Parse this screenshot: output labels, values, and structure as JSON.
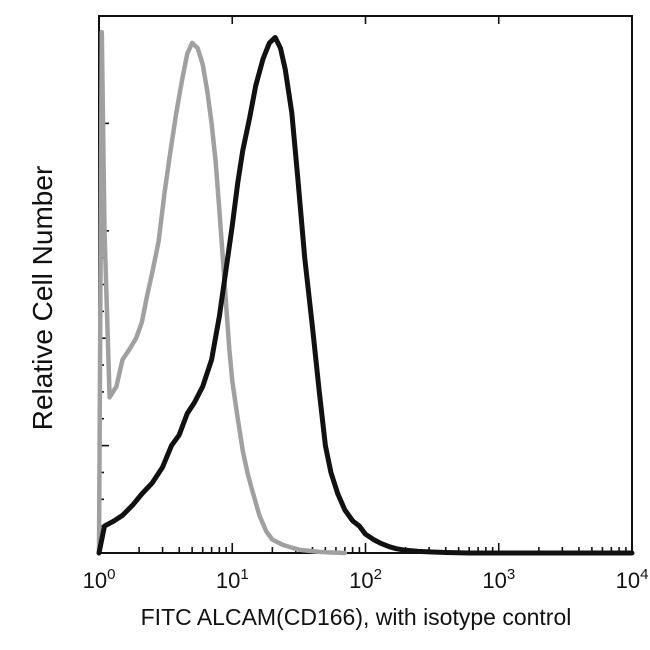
{
  "chart_data": {
    "type": "line",
    "title": "",
    "xlabel": "FITC ALCAM(CD166), with isotype control",
    "ylabel": "Relative Cell Number",
    "x_scale": "log",
    "xlim": [
      1,
      10000
    ],
    "ylim": [
      0,
      100
    ],
    "x_ticks": [
      {
        "base": "10",
        "exp": "0",
        "value": 1
      },
      {
        "base": "10",
        "exp": "1",
        "value": 10
      },
      {
        "base": "10",
        "exp": "2",
        "value": 100
      },
      {
        "base": "10",
        "exp": "3",
        "value": 1000
      },
      {
        "base": "10",
        "exp": "4",
        "value": 10000
      }
    ],
    "grid": false,
    "legend": "none",
    "series": [
      {
        "color": "#a0a0a0",
        "x": [
          1.0,
          1.05,
          1.1,
          1.2,
          1.35,
          1.5,
          1.7,
          1.9,
          2.1,
          2.3,
          2.5,
          2.8,
          3.1,
          3.4,
          3.8,
          4.2,
          4.6,
          5.0,
          5.5,
          6.0,
          6.5,
          7.0,
          7.5,
          8.0,
          8.5,
          9.0,
          9.5,
          10,
          11,
          12,
          13,
          14,
          16,
          18,
          20,
          24,
          28,
          32,
          38,
          45,
          55,
          70
        ],
        "y": [
          0,
          97,
          60,
          29,
          31,
          36,
          38,
          40,
          43,
          48,
          52,
          58,
          67,
          74,
          82,
          88,
          93,
          95,
          94,
          91,
          86,
          80,
          73,
          64,
          55,
          46,
          38,
          32,
          25,
          19,
          15,
          12,
          7,
          4,
          2.5,
          1.5,
          1,
          0.6,
          0.4,
          0.2,
          0.1,
          0
        ]
      },
      {
        "color": "#111111",
        "x": [
          1.0,
          1.1,
          1.3,
          1.5,
          1.8,
          2.1,
          2.5,
          3.0,
          3.5,
          4.0,
          4.6,
          5.2,
          6.0,
          7.0,
          8.0,
          9.0,
          10,
          11,
          12,
          13.5,
          15,
          17,
          19,
          21,
          23,
          25,
          28,
          31,
          35,
          40,
          45,
          50,
          55,
          62,
          70,
          80,
          90,
          100,
          115,
          130,
          150,
          170,
          200,
          250,
          300,
          400,
          600,
          1000,
          2000,
          5000,
          10000
        ],
        "y": [
          0,
          5,
          6,
          7,
          9,
          11,
          13,
          16,
          20,
          22,
          26,
          28,
          31,
          36,
          44,
          53,
          61,
          69,
          75,
          81,
          87,
          92,
          95,
          96,
          94,
          90,
          82,
          70,
          55,
          42,
          30,
          20,
          15,
          11,
          8,
          6,
          5,
          3.5,
          2.5,
          1.8,
          1.2,
          0.8,
          0.5,
          0.3,
          0.2,
          0.1,
          0,
          0,
          0,
          0,
          0
        ]
      }
    ]
  }
}
